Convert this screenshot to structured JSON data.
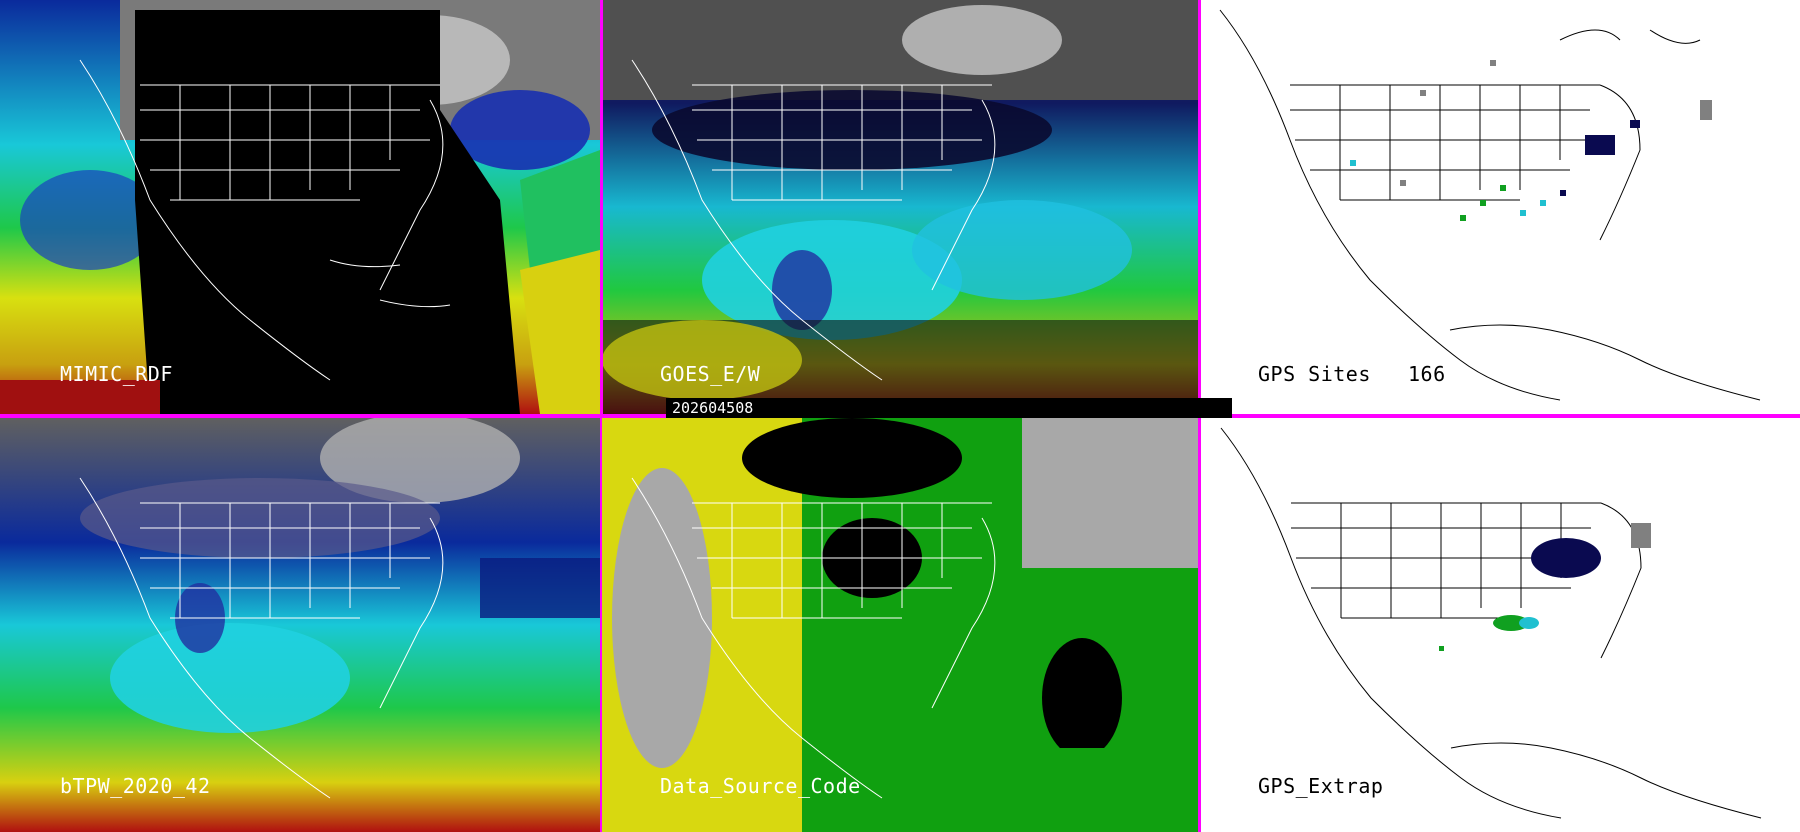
{
  "colors": {
    "divider": "#ff00ff",
    "boundary": "#ffffff",
    "background_white": "#ffffff"
  },
  "panels": {
    "mimic": {
      "label": "MIMIC_RDF"
    },
    "goes": {
      "label": "GOES_E/W"
    },
    "gps_sites": {
      "label": "GPS Sites",
      "count": "166"
    },
    "btpw": {
      "label": "bTPW_2020_42"
    },
    "source": {
      "label": "Data_Source_Code"
    },
    "gps_extrap": {
      "label": "GPS_Extrap"
    }
  },
  "timestamp": "202604508"
}
